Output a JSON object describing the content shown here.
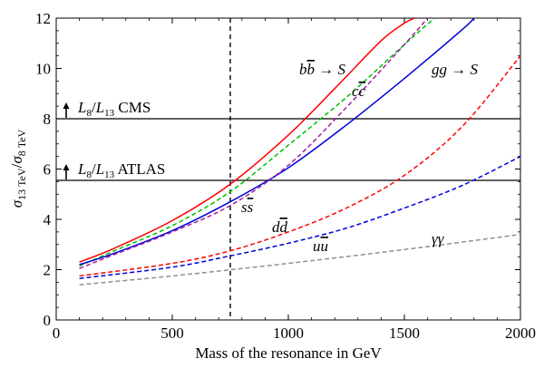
{
  "chart_data": {
    "type": "line",
    "title": "",
    "xlabel": "Mass of the resonance in GeV",
    "ylabel": "σ13 TeV/σ8 TeV",
    "ylabel_parts": {
      "sigma": "σ",
      "num_sub": "13 TeV",
      "slash": "/",
      "den_sub": "8 TeV"
    },
    "xlim": [
      0,
      2000
    ],
    "ylim": [
      0,
      12
    ],
    "xticks": [
      0,
      500,
      1000,
      1500,
      2000
    ],
    "yticks": [
      0,
      2,
      4,
      6,
      8,
      10,
      12
    ],
    "vertical_line": {
      "x": 750,
      "style": "dashed",
      "color": "#000000"
    },
    "horizontal_lines": [
      {
        "y": 8.0,
        "label": "L8/L13 CMS",
        "label_parts": {
          "l1": "L",
          "s1": "8",
          "slash": "/",
          "l2": "L",
          "s2": "13",
          "rest": " CMS"
        },
        "color": "#000000"
      },
      {
        "y": 5.55,
        "label": "L8/L13 ATLAS",
        "label_parts": {
          "l1": "L",
          "s1": "8",
          "slash": "/",
          "l2": "L",
          "s2": "13",
          "rest": " ATLAS"
        },
        "color": "#000000"
      }
    ],
    "series": [
      {
        "name": "bb̄ → S",
        "color": "#ff0000",
        "style": "solid",
        "x": [
          100,
          250,
          500,
          750,
          1000,
          1200,
          1400,
          1500,
          1545
        ],
        "y": [
          2.3,
          2.85,
          3.95,
          5.4,
          7.35,
          9.2,
          11.1,
          11.8,
          12.0
        ]
      },
      {
        "name": "cc̄",
        "color": "#00c000",
        "style": "dashed",
        "x": [
          100,
          250,
          500,
          750,
          1000,
          1250,
          1500,
          1630
        ],
        "y": [
          2.15,
          2.75,
          3.75,
          5.1,
          6.95,
          8.85,
          10.95,
          12.0
        ]
      },
      {
        "name": "gg → S",
        "color": "#0000dd",
        "style": "solid",
        "x": [
          100,
          250,
          500,
          750,
          1000,
          1250,
          1500,
          1750,
          1800
        ],
        "y": [
          2.2,
          2.65,
          3.55,
          4.7,
          6.05,
          7.75,
          9.6,
          11.55,
          12.0
        ]
      },
      {
        "name": "ss̄",
        "color": "#a020a0",
        "style": "dashed",
        "x": [
          100,
          250,
          500,
          750,
          1000,
          1250,
          1500,
          1600
        ],
        "y": [
          2.05,
          2.6,
          3.5,
          4.55,
          6.15,
          8.45,
          10.95,
          12.0
        ]
      },
      {
        "name": "dd̄",
        "color": "#ff0000",
        "style": "dashed",
        "x": [
          100,
          500,
          750,
          1000,
          1250,
          1500,
          1750,
          2000
        ],
        "y": [
          1.75,
          2.25,
          2.75,
          3.5,
          4.45,
          5.75,
          7.7,
          10.5
        ]
      },
      {
        "name": "uū",
        "color": "#0000dd",
        "style": "dashed",
        "x": [
          100,
          500,
          750,
          1000,
          1250,
          1500,
          1750,
          2000
        ],
        "y": [
          1.65,
          2.1,
          2.55,
          3.05,
          3.65,
          4.45,
          5.35,
          6.5
        ]
      },
      {
        "name": "γγ",
        "color": "#909090",
        "style": "dashed",
        "x": [
          100,
          500,
          1000,
          1500,
          2000
        ],
        "y": [
          1.4,
          1.75,
          2.25,
          2.8,
          3.4
        ]
      }
    ],
    "series_labels": [
      {
        "series": 0,
        "parts": {
          "a": "b",
          "b": "b",
          "rest": " → ",
          "s": "S"
        },
        "color": "#ff0000"
      },
      {
        "series": 1,
        "parts": {
          "a": "c",
          "b": "c",
          "rest": "",
          "s": ""
        },
        "color": "#00c000"
      },
      {
        "series": 2,
        "parts": {
          "a": "gg",
          "b": "",
          "rest": " → ",
          "s": "S"
        },
        "color": "#0000dd"
      },
      {
        "series": 3,
        "parts": {
          "a": "s",
          "b": "s",
          "rest": "",
          "s": ""
        },
        "color": "#a020a0"
      },
      {
        "series": 4,
        "parts": {
          "a": "d",
          "b": "d",
          "rest": "",
          "s": ""
        },
        "color": "#ff0000"
      },
      {
        "series": 5,
        "parts": {
          "a": "u",
          "b": "u",
          "rest": "",
          "s": ""
        },
        "color": "#0000dd"
      },
      {
        "series": 6,
        "parts": {
          "a": "γγ",
          "b": "",
          "rest": "",
          "s": ""
        },
        "color": "#909090"
      }
    ]
  }
}
